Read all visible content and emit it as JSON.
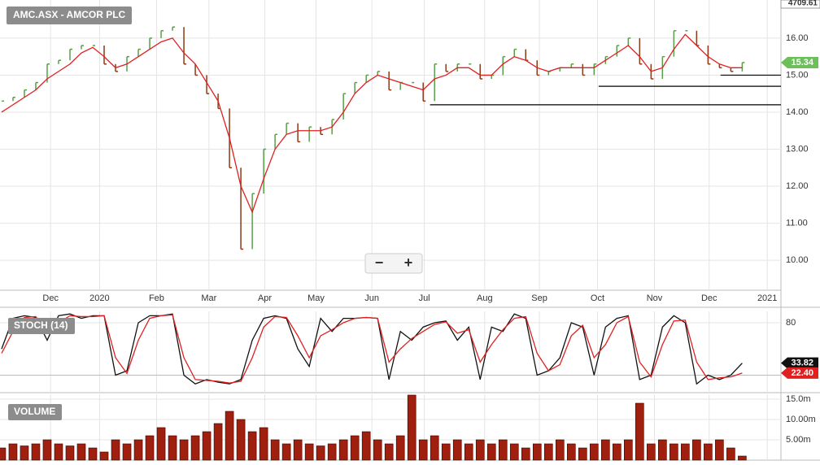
{
  "header": {
    "title": "AMC.ASX - AMCOR PLC",
    "index_label": "4709.61"
  },
  "controls": {
    "zoom_out": "−",
    "zoom_in": "+"
  },
  "chart_data": [
    {
      "type": "price",
      "title": "AMC.ASX - AMCOR PLC",
      "x": [
        0,
        1,
        2,
        3,
        4,
        5,
        6,
        7,
        8,
        9,
        10,
        11,
        12,
        13,
        14,
        15,
        16,
        17,
        18,
        19,
        20,
        21,
        22,
        23,
        24,
        25,
        26,
        27,
        28,
        29,
        30,
        31,
        32,
        33,
        34,
        35,
        36,
        37,
        38,
        39,
        40,
        41,
        42,
        43,
        44,
        45,
        46,
        47,
        48,
        49,
        50,
        51,
        52,
        53,
        54,
        55,
        56,
        57,
        58,
        59,
        60,
        61,
        62,
        63,
        64,
        65
      ],
      "xlim": [
        -0.14,
        68.4
      ],
      "xticks": [
        {
          "value": 4.3,
          "label": "Dec"
        },
        {
          "value": 8.6,
          "label": "2020"
        },
        {
          "value": 13.6,
          "label": "Feb"
        },
        {
          "value": 18.2,
          "label": "Mar"
        },
        {
          "value": 23.1,
          "label": "Apr"
        },
        {
          "value": 27.6,
          "label": "May"
        },
        {
          "value": 32.5,
          "label": "Jun"
        },
        {
          "value": 37.1,
          "label": "Jul"
        },
        {
          "value": 42.4,
          "label": "Aug"
        },
        {
          "value": 47.2,
          "label": "Sep"
        },
        {
          "value": 52.3,
          "label": "Oct"
        },
        {
          "value": 57.3,
          "label": "Nov"
        },
        {
          "value": 62.1,
          "label": "Dec"
        },
        {
          "value": 67.2,
          "label": "2021"
        }
      ],
      "ylim": [
        9.19,
        17.03
      ],
      "yticks": [
        {
          "value": 10,
          "label": "10.00"
        },
        {
          "value": 11,
          "label": "11.00"
        },
        {
          "value": 12,
          "label": "12.00"
        },
        {
          "value": 13,
          "label": "13.00"
        },
        {
          "value": 14,
          "label": "14.00"
        },
        {
          "value": 15,
          "label": "15.00"
        },
        {
          "value": 16,
          "label": "16.00"
        }
      ],
      "grid": true,
      "series": [
        {
          "color": "#5a9e4a",
          "down_color": "#8b3a1a",
          "last_label": "15.34",
          "values": [
            14.3,
            14.4,
            14.6,
            14.8,
            15.3,
            15.4,
            15.7,
            15.8,
            15.8,
            15.3,
            15.1,
            15.5,
            15.7,
            16.0,
            16.2,
            16.3,
            15.3,
            15.0,
            14.5,
            14.1,
            12.5,
            10.3,
            11.8,
            13.0,
            13.4,
            13.7,
            13.2,
            13.6,
            13.4,
            13.8,
            14.5,
            14.8,
            15.0,
            15.1,
            14.6,
            14.8,
            14.8,
            14.3,
            15.3,
            15.1,
            15.3,
            15.3,
            14.9,
            15.0,
            15.5,
            15.7,
            15.4,
            15.0,
            15.1,
            15.2,
            15.3,
            15.0,
            15.3,
            15.5,
            15.8,
            16.0,
            15.3,
            14.9,
            15.5,
            16.2,
            16.2,
            15.8,
            15.3,
            15.2,
            15.1,
            15.34
          ]
        },
        {
          "color": "#e02020",
          "values": [
            14.0,
            14.2,
            14.4,
            14.6,
            14.9,
            15.1,
            15.3,
            15.6,
            15.75,
            15.5,
            15.2,
            15.3,
            15.5,
            15.7,
            15.9,
            16.0,
            15.6,
            15.3,
            14.8,
            14.3,
            13.3,
            12.0,
            11.3,
            12.2,
            13.0,
            13.4,
            13.5,
            13.5,
            13.5,
            13.6,
            14.0,
            14.5,
            14.8,
            15.0,
            14.9,
            14.8,
            14.7,
            14.6,
            14.9,
            15.0,
            15.2,
            15.2,
            15.0,
            15.0,
            15.3,
            15.5,
            15.4,
            15.2,
            15.1,
            15.2,
            15.2,
            15.2,
            15.2,
            15.4,
            15.6,
            15.8,
            15.5,
            15.1,
            15.2,
            15.7,
            16.1,
            15.8,
            15.5,
            15.3,
            15.2,
            15.2
          ]
        }
      ],
      "support_lines": [
        {
          "value": 15.0,
          "from": 63.1
        },
        {
          "value": 14.7,
          "from": 52.4
        },
        {
          "value": 14.2,
          "from": 37.6
        }
      ]
    },
    {
      "type": "line",
      "title": "STOCH (14)",
      "ylim": [
        0,
        93
      ],
      "yticks": [
        80
      ],
      "reference_lines": [
        20
      ],
      "series": [
        {
          "color": "#111111",
          "last_label": "33.82",
          "values": [
            50,
            85,
            88,
            86,
            60,
            88,
            90,
            85,
            88,
            88,
            20,
            25,
            80,
            88,
            88,
            90,
            20,
            10,
            15,
            12,
            10,
            15,
            60,
            85,
            88,
            85,
            50,
            30,
            85,
            70,
            85,
            85,
            86,
            85,
            15,
            70,
            60,
            75,
            80,
            82,
            60,
            75,
            15,
            75,
            70,
            90,
            85,
            20,
            25,
            40,
            80,
            75,
            20,
            75,
            85,
            88,
            15,
            20,
            75,
            88,
            80,
            10,
            20,
            15,
            20,
            33.82
          ]
        },
        {
          "color": "#e02020",
          "last_label": "22.40",
          "values": [
            45,
            70,
            86,
            87,
            70,
            80,
            88,
            87,
            87,
            88,
            40,
            22,
            60,
            85,
            88,
            89,
            40,
            15,
            14,
            13,
            11,
            13,
            40,
            75,
            87,
            86,
            65,
            40,
            65,
            72,
            80,
            85,
            86,
            85,
            35,
            50,
            62,
            70,
            78,
            81,
            68,
            72,
            35,
            55,
            72,
            85,
            87,
            45,
            25,
            32,
            65,
            77,
            40,
            55,
            80,
            87,
            35,
            18,
            55,
            82,
            83,
            35,
            15,
            17,
            18,
            22.4
          ]
        }
      ]
    },
    {
      "type": "bar",
      "title": "VOLUME",
      "ylim": [
        0,
        16.2
      ],
      "yticks": [
        {
          "value": 5,
          "label": "5.00m"
        },
        {
          "value": 10,
          "label": "10.00m"
        },
        {
          "value": 15,
          "label": "15.0m"
        }
      ],
      "color": "#a0200f",
      "values": [
        3,
        4,
        3.5,
        4,
        5,
        4,
        3.5,
        4,
        3,
        2,
        5,
        4,
        5,
        6,
        8,
        6,
        5,
        6,
        7,
        9,
        12,
        10,
        7,
        8,
        5,
        4,
        5,
        4,
        3.5,
        4,
        5,
        6,
        7,
        5,
        4,
        6,
        16,
        5,
        6,
        4,
        5,
        4,
        5,
        4,
        5,
        4,
        3,
        4,
        4,
        5,
        4,
        3,
        4,
        5,
        4,
        5,
        14,
        4,
        5,
        4,
        4,
        5,
        4,
        5,
        3,
        1
      ]
    }
  ]
}
